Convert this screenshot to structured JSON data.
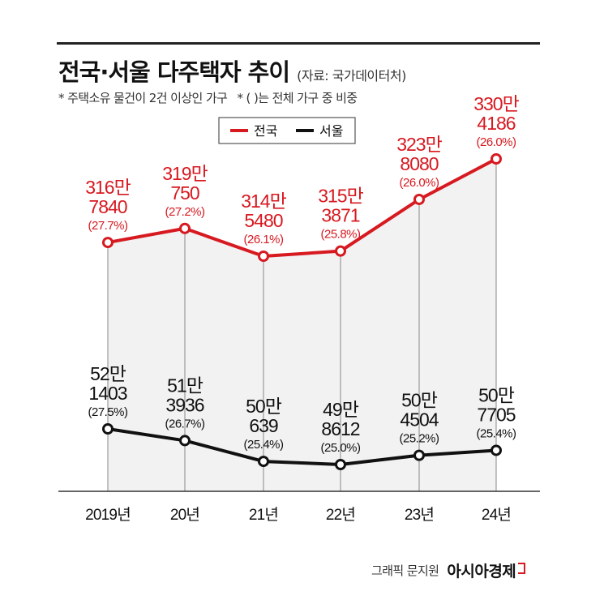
{
  "header": {
    "title": "전국·서울 다주택자 추이",
    "source": "(자료: 국가데이터처)",
    "note1": "* 주택소유 물건이 2건 이상인 가구",
    "note2": "* ( )는 전체 가구 중 비중"
  },
  "footer": {
    "credit": "그래픽 문지원",
    "brand": "아시아경제"
  },
  "colors": {
    "national": "#d71920",
    "seoul": "#111111",
    "area": "#f2f2f2",
    "grid": "#888888"
  },
  "chart_data": {
    "type": "line",
    "categories": [
      "2019년",
      "20년",
      "21년",
      "22년",
      "23년",
      "24년"
    ],
    "ylabel": "",
    "legend_position": "top-center",
    "series": [
      {
        "name": "전국",
        "values": [
          3167840,
          3190750,
          3145480,
          3153871,
          3238080,
          3304186
        ],
        "labels": [
          [
            "316만",
            "7840",
            "(27.7%)"
          ],
          [
            "319만",
            "750",
            "(27.2%)"
          ],
          [
            "314만",
            "5480",
            "(26.1%)"
          ],
          [
            "315만",
            "3871",
            "(25.8%)"
          ],
          [
            "323만",
            "8080",
            "(26.0%)"
          ],
          [
            "330만",
            "4186",
            "(26.0%)"
          ]
        ],
        "shares": [
          27.7,
          27.2,
          26.1,
          25.8,
          26.0,
          26.0
        ]
      },
      {
        "name": "서울",
        "values": [
          521403,
          513936,
          500639,
          498612,
          504504,
          507705
        ],
        "labels": [
          [
            "52만",
            "1403",
            "(27.5%)"
          ],
          [
            "51만",
            "3936",
            "(26.7%)"
          ],
          [
            "50만",
            "639",
            "(25.4%)"
          ],
          [
            "49만",
            "8612",
            "(25.0%)"
          ],
          [
            "50만",
            "4504",
            "(25.2%)"
          ],
          [
            "50만",
            "7705",
            "(25.4%)"
          ]
        ],
        "shares": [
          27.5,
          26.7,
          25.4,
          25.0,
          25.2,
          25.4
        ]
      }
    ]
  }
}
